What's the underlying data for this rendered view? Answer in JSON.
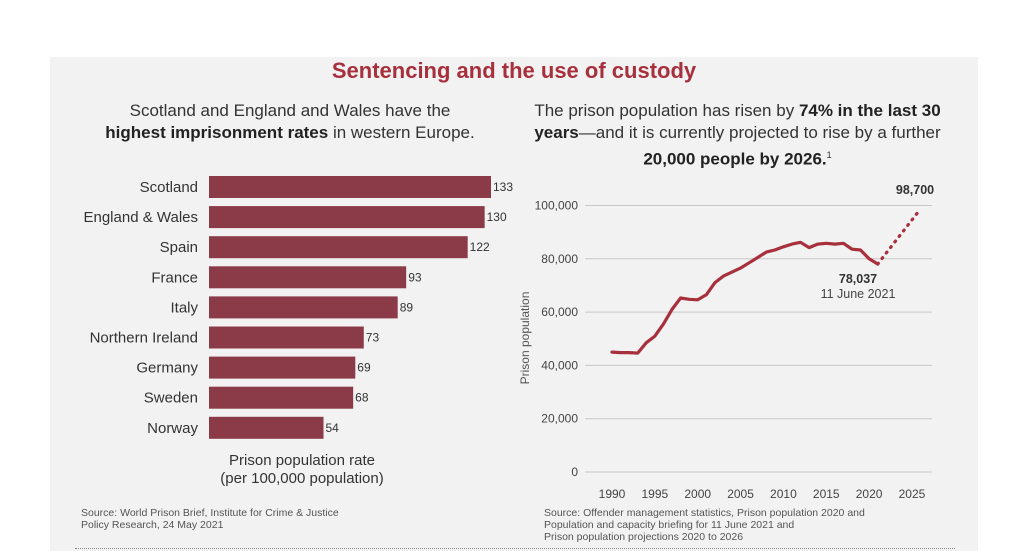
{
  "title": "Sentencing and the use of custody",
  "left_panel": {
    "subtitle": {
      "part1": "Scotland and England and Wales have the",
      "bold": "highest imprisonment rates",
      "part2": "in western Europe."
    },
    "xlabel_line1": "Prison population rate",
    "xlabel_line2": "(per 100,000 population)",
    "source_line1": "Source: World Prison Brief, Institute for Crime & Justice",
    "source_line2": "Policy Research, 24 May 2021"
  },
  "right_panel": {
    "subtitle": {
      "part1": "The prison population has risen by",
      "bold1": "74% in the last 30 years",
      "part2": "—and it is currently projected to rise by a further",
      "bold2": "20,000 people by 2026.",
      "footnote": "1"
    },
    "annotation_value": "78,037",
    "annotation_date": "11 June 2021",
    "projection_value": "98,700",
    "source_line1": "Source: Offender management statistics, Prison population 2020 and",
    "source_line2": "Population and capacity briefing for 11 June 2021 and",
    "source_line3": "Prison population projections 2020 to 2026"
  },
  "colors": {
    "bar": "#8b3a47",
    "title": "#a7303c",
    "line": "#a7303c"
  },
  "chart_data": [
    {
      "type": "bar",
      "orientation": "horizontal",
      "categories": [
        "Scotland",
        "England & Wales",
        "Spain",
        "France",
        "Italy",
        "Northern Ireland",
        "Germany",
        "Sweden",
        "Norway"
      ],
      "values": [
        133,
        130,
        122,
        93,
        89,
        73,
        69,
        68,
        54
      ],
      "xlabel": "Prison population rate (per 100,000 population)",
      "data_labels": true
    },
    {
      "type": "line",
      "ylabel": "Prison population",
      "ylim": [
        0,
        100000
      ],
      "yticks": [
        0,
        20000,
        40000,
        60000,
        80000,
        100000
      ],
      "ytick_labels": [
        "0",
        "20,000",
        "40,000",
        "60,000",
        "80,000",
        "100,000"
      ],
      "xticks": [
        1990,
        1995,
        2000,
        2005,
        2010,
        2015,
        2020,
        2025
      ],
      "xlim": [
        1988,
        2027
      ],
      "grid": "horizontal",
      "series": [
        {
          "style": "solid",
          "points": [
            [
              1990,
              45000
            ],
            [
              1991,
              44800
            ],
            [
              1992,
              44800
            ],
            [
              1993,
              44600
            ],
            [
              1994,
              48500
            ],
            [
              1995,
              51000
            ],
            [
              1996,
              55500
            ],
            [
              1997,
              61000
            ],
            [
              1998,
              65300
            ],
            [
              1999,
              64800
            ],
            [
              2000,
              64600
            ],
            [
              2001,
              66500
            ],
            [
              2002,
              71000
            ],
            [
              2003,
              73500
            ],
            [
              2004,
              75000
            ],
            [
              2005,
              76500
            ],
            [
              2006,
              78500
            ],
            [
              2007,
              80500
            ],
            [
              2008,
              82500
            ],
            [
              2009,
              83300
            ],
            [
              2010,
              84500
            ],
            [
              2011,
              85500
            ],
            [
              2012,
              86200
            ],
            [
              2013,
              84200
            ],
            [
              2014,
              85500
            ],
            [
              2015,
              85800
            ],
            [
              2016,
              85500
            ],
            [
              2017,
              85800
            ],
            [
              2018,
              83600
            ],
            [
              2019,
              83300
            ],
            [
              2020,
              80000
            ],
            [
              2021,
              78037
            ]
          ]
        },
        {
          "style": "dotted",
          "points": [
            [
              2021,
              78037
            ],
            [
              2026,
              98700
            ]
          ]
        }
      ]
    }
  ]
}
